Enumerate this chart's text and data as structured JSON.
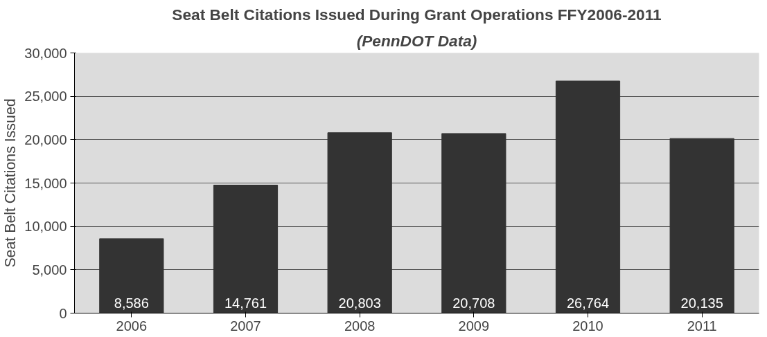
{
  "chart_data": {
    "type": "bar",
    "title": "Seat Belt Citations Issued During Grant Operations FFY2006-2011",
    "subtitle": "(PennDOT Data)",
    "ylabel": "Seat Belt Citations Issued",
    "categories": [
      "2006",
      "2007",
      "2008",
      "2009",
      "2010",
      "2011"
    ],
    "values": [
      8586,
      14761,
      20803,
      20708,
      26764,
      20135
    ],
    "color": "#333333",
    "value_labels": [
      "8,586",
      "14,761",
      "20,803",
      "20,708",
      "26,764",
      "20,135"
    ],
    "ylim": [
      0,
      30000
    ],
    "yticks": [
      {
        "value": 0,
        "label": "0"
      },
      {
        "value": 5000,
        "label": "5,000"
      },
      {
        "value": 10000,
        "label": "10,000"
      },
      {
        "value": 15000,
        "label": "15,000"
      },
      {
        "value": 20000,
        "label": "20,000"
      },
      {
        "value": 25000,
        "label": "25,000"
      },
      {
        "value": 30000,
        "label": "30,000"
      }
    ],
    "grid": "y"
  }
}
